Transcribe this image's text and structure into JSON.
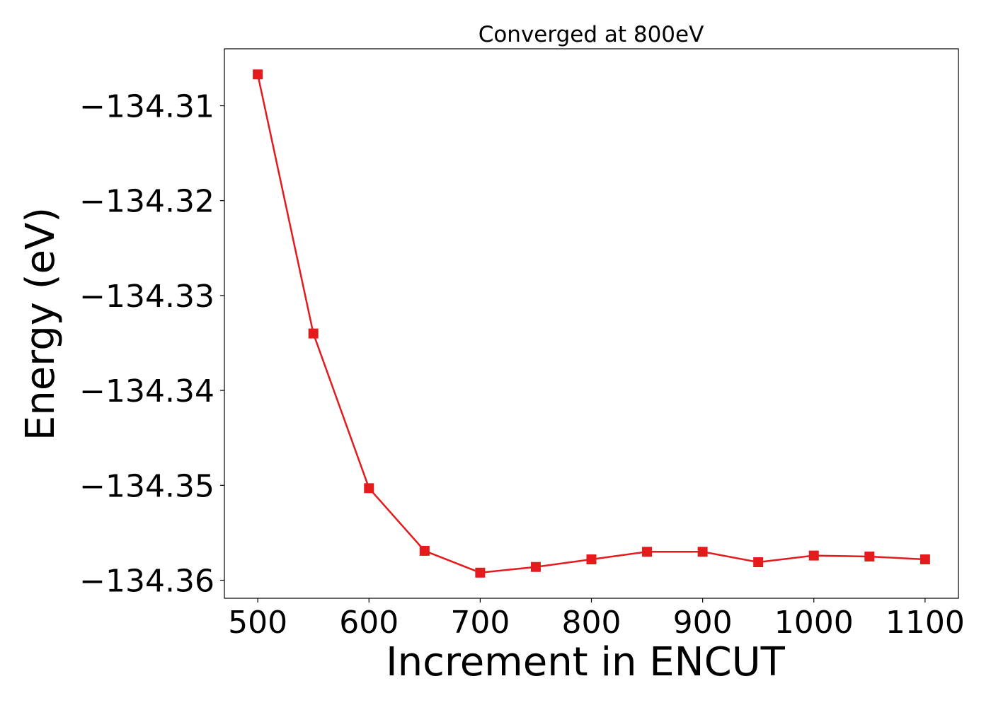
{
  "chart_data": {
    "type": "line",
    "title": "Converged at 800eV",
    "xlabel": "Increment in ENCUT",
    "ylabel": "Energy (eV)",
    "xlim": [
      470,
      1130
    ],
    "ylim": [
      -134.3619,
      -134.304
    ],
    "x_ticks": [
      500,
      600,
      700,
      800,
      900,
      1000,
      1100
    ],
    "x_tick_labels": [
      "500",
      "600",
      "700",
      "800",
      "900",
      "1000",
      "1100"
    ],
    "y_ticks": [
      -134.31,
      -134.32,
      -134.33,
      -134.34,
      -134.35,
      -134.36
    ],
    "y_tick_labels": [
      "−134.31",
      "−134.32",
      "−134.33",
      "−134.34",
      "−134.35",
      "−134.36"
    ],
    "grid": false,
    "legend": "none",
    "marker": "square",
    "series_color": "#e41a1c",
    "series": [
      {
        "x": [
          500,
          550,
          600,
          650,
          700,
          750,
          800,
          850,
          900,
          950,
          1000,
          1050,
          1100
        ],
        "y": [
          -134.3067,
          -134.334,
          -134.3503,
          -134.3569,
          -134.3592,
          -134.3586,
          -134.3578,
          -134.357,
          -134.357,
          -134.3581,
          -134.3574,
          -134.3575,
          -134.3578
        ]
      }
    ]
  }
}
